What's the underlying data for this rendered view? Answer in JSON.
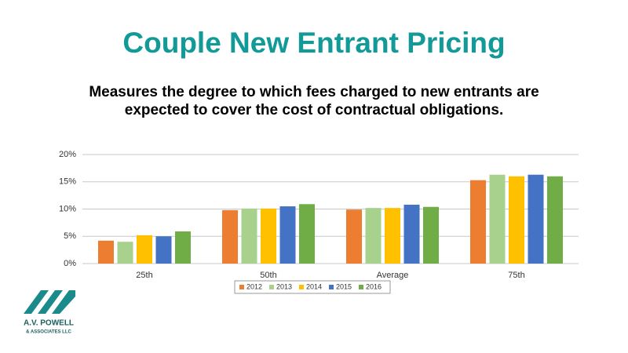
{
  "chart_data": {
    "type": "bar",
    "title": "Couple New Entrant Pricing",
    "subtitle": "Measures the degree to which fees charged to new entrants are expected to cover the cost of contractual obligations.",
    "categories": [
      "25th",
      "50th",
      "Average",
      "75th"
    ],
    "series": [
      {
        "name": "2012",
        "color": "#ed7d31",
        "values": [
          4.2,
          9.8,
          9.9,
          15.3
        ]
      },
      {
        "name": "2013",
        "color": "#a9d18e",
        "values": [
          4.0,
          10.1,
          10.2,
          16.3
        ]
      },
      {
        "name": "2014",
        "color": "#ffc000",
        "values": [
          5.2,
          10.1,
          10.2,
          16.0
        ]
      },
      {
        "name": "2015",
        "color": "#4472c4",
        "values": [
          5.0,
          10.5,
          10.8,
          16.3
        ]
      },
      {
        "name": "2016",
        "color": "#70ad47",
        "values": [
          5.9,
          10.9,
          10.4,
          16.0
        ]
      }
    ],
    "ylim": [
      0,
      20
    ],
    "yticks": [
      {
        "value": 0,
        "label": "0%"
      },
      {
        "value": 5,
        "label": "5%"
      },
      {
        "value": 10,
        "label": "10%"
      },
      {
        "value": 15,
        "label": "15%"
      },
      {
        "value": 20,
        "label": "20%"
      }
    ],
    "grid": true,
    "legend": "bottom"
  },
  "logo": {
    "name": "A.V. POWELL",
    "tagline": "& ASSOCIATES LLC"
  }
}
